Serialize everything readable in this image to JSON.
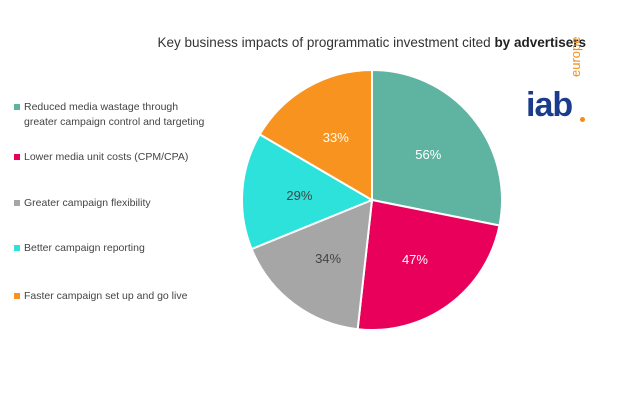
{
  "title": {
    "prefix": "Key business impacts of programmatic investment cited",
    "bold": "by advertisers"
  },
  "logo": {
    "text": "iab",
    "region": "europe"
  },
  "chart_data": {
    "type": "pie",
    "title": "Key business impacts of programmatic investment cited by advertisers",
    "slices": [
      {
        "label": "Reduced media wastage through greater campaign control and targeting",
        "label_lines": [
          "Reduced media wastage through",
          "greater campaign control and targeting"
        ],
        "value": 56,
        "display": "56%",
        "color": "#5fb3a1"
      },
      {
        "label": "Lower media unit costs (CPM/CPA)",
        "label_lines": [
          "Lower media unit costs (CPM/CPA)"
        ],
        "value": 47,
        "display": "47%",
        "color": "#e8005a"
      },
      {
        "label": "Greater campaign flexibility",
        "label_lines": [
          "Greater campaign flexibility"
        ],
        "value": 34,
        "display": "34%",
        "color": "#a6a6a6"
      },
      {
        "label": "Better campaign reporting",
        "label_lines": [
          "Better campaign reporting"
        ],
        "value": 29,
        "display": "29%",
        "color": "#2de2da"
      },
      {
        "label": "Faster campaign set up and go live",
        "label_lines": [
          "Faster campaign set up and go live"
        ],
        "value": 33,
        "display": "33%",
        "color": "#f7931e"
      }
    ],
    "legend_position": "left"
  }
}
